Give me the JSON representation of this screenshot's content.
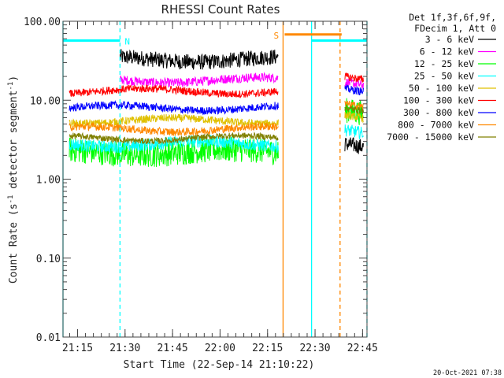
{
  "chart_data": {
    "type": "line",
    "title": "RHESSI Count Rates",
    "xlabel": "Start Time (22-Sep-14 21:10:22)",
    "ylabel_main": "Count Rate (s",
    "ylabel_sup": "-1",
    "ylabel_rest": " detector segment",
    "ylabel_sup2": "-1",
    "ylabel_close": ")",
    "y_scale": "log",
    "ylim": [
      0.01,
      100
    ],
    "xlim_minutes": [
      0,
      96
    ],
    "x_ticks": [
      {
        "label": "21:15",
        "minute": 4.6
      },
      {
        "label": "21:30",
        "minute": 19.6
      },
      {
        "label": "21:45",
        "minute": 34.6
      },
      {
        "label": "22:00",
        "minute": 49.6
      },
      {
        "label": "22:15",
        "minute": 64.6
      },
      {
        "label": "22:30",
        "minute": 79.6
      },
      {
        "label": "22:45",
        "minute": 94.6
      }
    ],
    "y_ticks": [
      {
        "label": "0.01",
        "value": 0.01
      },
      {
        "label": "0.10",
        "value": 0.1
      },
      {
        "label": "1.00",
        "value": 1
      },
      {
        "label": "10.00",
        "value": 10
      },
      {
        "label": "100.00",
        "value": 100
      }
    ],
    "legend_header": [
      "Det 1f,3f,6f,9f,",
      "FDecim 1, Att 0"
    ],
    "legend_position": "top-right outside",
    "series": [
      {
        "name": "3 - 6 keV",
        "color": "#000000",
        "level": 33,
        "noise": 0.1,
        "start": 18,
        "end": 68,
        "seg2_start": 89,
        "seg2_end": 95,
        "seg2_level": 2.8
      },
      {
        "name": "6 - 12 keV",
        "color": "#ff00ff",
        "level": 18,
        "noise": 0.06,
        "start": 18,
        "end": 68,
        "seg2_start": 89,
        "seg2_end": 95,
        "seg2_level": 17
      },
      {
        "name": "12 - 25 keV",
        "color": "#00ff00",
        "level": 2.2,
        "noise": 0.16,
        "start": 2,
        "end": 68,
        "seg2_start": 89,
        "seg2_end": 95,
        "seg2_level": 7.5
      },
      {
        "name": "25 - 50 keV",
        "color": "#00ffff",
        "level": 2.8,
        "noise": 0.08,
        "start": 2,
        "end": 68,
        "seg2_start": 89,
        "seg2_end": 95,
        "seg2_level": 4.2
      },
      {
        "name": "50 - 100 keV",
        "color": "#e0c000",
        "level": 5.5,
        "noise": 0.05,
        "start": 2,
        "end": 68,
        "seg2_start": 89,
        "seg2_end": 95,
        "seg2_level": 6.5
      },
      {
        "name": "100 - 300 keV",
        "color": "#ff0000",
        "level": 13,
        "noise": 0.05,
        "start": 2,
        "end": 68,
        "seg2_start": 89,
        "seg2_end": 95,
        "seg2_level": 20
      },
      {
        "name": "300 - 800 keV",
        "color": "#0000ff",
        "level": 8.0,
        "noise": 0.05,
        "start": 2,
        "end": 68,
        "seg2_start": 89,
        "seg2_end": 95,
        "seg2_level": 14
      },
      {
        "name": "800 - 7000 keV",
        "color": "#ff8800",
        "level": 4.3,
        "noise": 0.05,
        "start": 2,
        "end": 68,
        "seg2_start": 89,
        "seg2_end": 95,
        "seg2_level": 9
      },
      {
        "name": "7000 - 15000 keV",
        "color": "#808000",
        "level": 3.3,
        "noise": 0.04,
        "start": 2,
        "end": 68,
        "seg2_start": 89,
        "seg2_end": 95,
        "seg2_level": 8
      }
    ],
    "markers": [
      {
        "type": "vline",
        "minute": 0,
        "color": "#00ffff",
        "dashed": false
      },
      {
        "type": "vline",
        "minute": 18,
        "color": "#00ffff",
        "dashed": true
      },
      {
        "type": "vline",
        "minute": 69.5,
        "color": "#ff8800",
        "dashed": false
      },
      {
        "type": "vline",
        "minute": 78.5,
        "color": "#00ffff",
        "dashed": false
      },
      {
        "type": "vline",
        "minute": 87.5,
        "color": "#ff8800",
        "dashed": true
      },
      {
        "type": "vline",
        "minute": 96,
        "color": "#00ffff",
        "dashed": true
      }
    ],
    "flag_bars": [
      {
        "start": 0,
        "end": 18,
        "value": 57,
        "color": "#00ffff",
        "label": "N"
      },
      {
        "start": 70,
        "end": 88,
        "value": 68,
        "color": "#ff8800",
        "label": "S"
      },
      {
        "start": 78.5,
        "end": 96,
        "value": 57,
        "color": "#00ffff",
        "label": ""
      }
    ],
    "timestamp": "20-Oct-2021 07:38"
  }
}
